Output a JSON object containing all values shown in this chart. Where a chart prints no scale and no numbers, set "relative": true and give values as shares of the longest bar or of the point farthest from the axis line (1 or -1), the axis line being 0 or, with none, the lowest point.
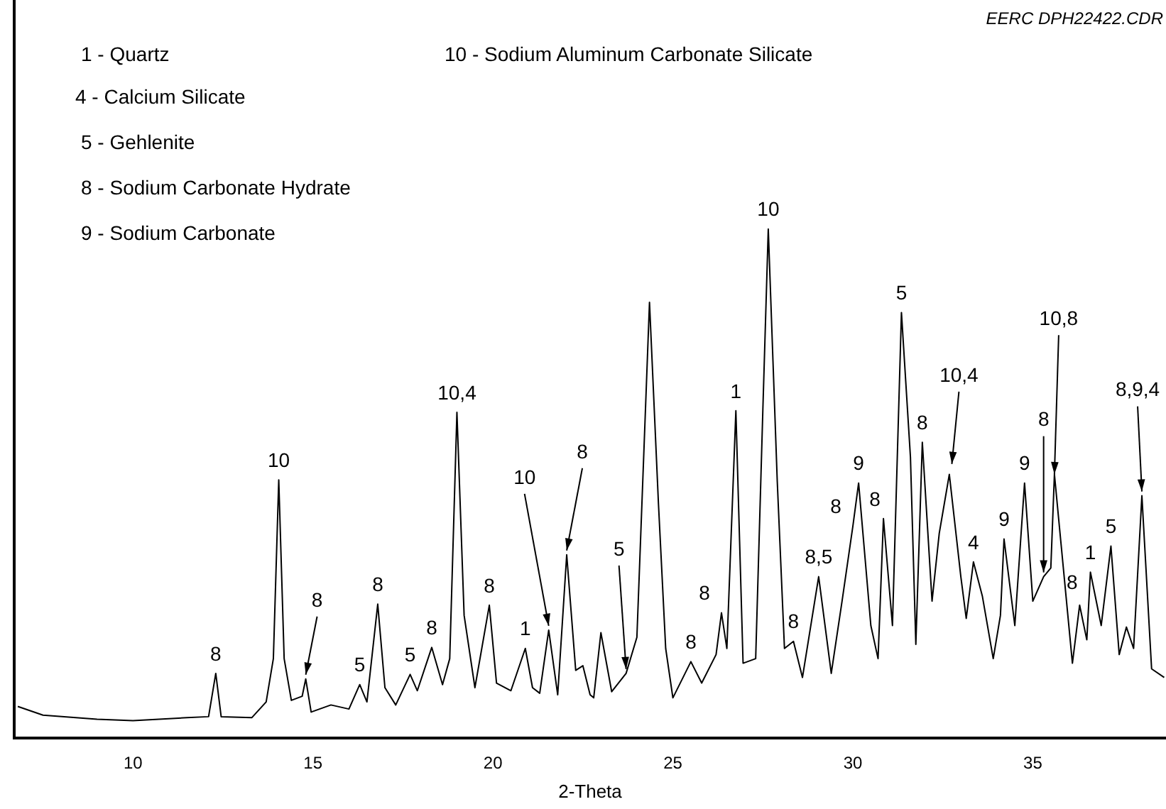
{
  "chart_data": {
    "type": "line",
    "relative": true,
    "xlabel": "2-Theta",
    "color": "#000000",
    "grid": false,
    "legend": false,
    "marker": "none",
    "x": [
      6.8,
      7.5,
      9,
      10,
      11.5,
      12.1,
      12.3,
      12.45,
      13.3,
      13.7,
      13.9,
      14.05,
      14.2,
      14.4,
      14.7,
      14.8,
      14.95,
      15.5,
      16.0,
      16.3,
      16.5,
      16.8,
      17.0,
      17.3,
      17.7,
      17.9,
      18.3,
      18.6,
      18.8,
      19.0,
      19.2,
      19.5,
      19.9,
      20.1,
      20.5,
      20.9,
      21.1,
      21.3,
      21.55,
      21.8,
      22.05,
      22.3,
      22.5,
      22.7,
      22.8,
      23.0,
      23.3,
      23.7,
      24.0,
      24.35,
      24.6,
      24.8,
      25.0,
      25.5,
      25.8,
      26.2,
      26.35,
      26.5,
      26.75,
      26.95,
      27.3,
      27.5,
      27.65,
      27.9,
      28.1,
      28.35,
      28.6,
      29.05,
      29.4,
      29.7,
      30.0,
      30.16,
      30.5,
      30.7,
      30.85,
      31.1,
      31.35,
      31.6,
      31.75,
      31.93,
      32.2,
      32.4,
      32.68,
      33.0,
      33.15,
      33.35,
      33.6,
      33.9,
      34.1,
      34.2,
      34.5,
      34.77,
      35.0,
      35.3,
      35.5,
      35.6,
      36.1,
      36.3,
      36.5,
      36.6,
      36.9,
      37.17,
      37.4,
      37.6,
      37.8,
      38.03,
      38.3,
      38.65
    ],
    "values": [
      0.062,
      0.045,
      0.037,
      0.034,
      0.04,
      0.042,
      0.127,
      0.042,
      0.04,
      0.071,
      0.156,
      0.507,
      0.156,
      0.074,
      0.082,
      0.116,
      0.051,
      0.065,
      0.057,
      0.105,
      0.071,
      0.263,
      0.099,
      0.065,
      0.125,
      0.093,
      0.178,
      0.105,
      0.156,
      0.64,
      0.241,
      0.099,
      0.261,
      0.108,
      0.093,
      0.176,
      0.099,
      0.088,
      0.212,
      0.085,
      0.36,
      0.133,
      0.142,
      0.085,
      0.079,
      0.207,
      0.091,
      0.127,
      0.198,
      0.856,
      0.459,
      0.176,
      0.079,
      0.15,
      0.108,
      0.164,
      0.246,
      0.176,
      0.643,
      0.147,
      0.156,
      0.646,
      1,
      0.504,
      0.176,
      0.19,
      0.119,
      0.317,
      0.127,
      0.269,
      0.416,
      0.501,
      0.221,
      0.156,
      0.431,
      0.221,
      0.836,
      0.552,
      0.184,
      0.581,
      0.269,
      0.402,
      0.518,
      0.317,
      0.235,
      0.346,
      0.278,
      0.156,
      0.241,
      0.391,
      0.221,
      0.501,
      0.269,
      0.317,
      0.334,
      0.518,
      0.147,
      0.261,
      0.193,
      0.326,
      0.221,
      0.377,
      0.164,
      0.218,
      0.176,
      0.476,
      0.136,
      0.119
    ],
    "annotations": [
      "EERC DPH22422.CDR",
      "1 - Quartz",
      "4 - Calcium Silicate",
      "5 - Gehlenite",
      "8 - Sodium Carbonate Hydrate",
      "9 - Sodium Carbonate",
      "10 - Sodium Aluminum Carbonate Silicate",
      "8",
      {
        "text": "8",
        "x": 12.3,
        "y": 0.127
      },
      {
        "text": "10",
        "x": 14.05,
        "y": 0.507
      },
      {
        "text": "8",
        "x": 14.8,
        "y": 0.116
      },
      {
        "text": "5",
        "x": 16.3,
        "y": 0.105
      },
      {
        "text": "8",
        "x": 16.8,
        "y": 0.263
      },
      {
        "text": "5",
        "x": 17.7,
        "y": 0.125
      },
      {
        "text": "8",
        "x": 18.3,
        "y": 0.178
      },
      {
        "text": "10,4",
        "x": 19.0,
        "y": 0.64
      },
      {
        "text": "8",
        "x": 19.9,
        "y": 0.261
      },
      {
        "text": "1",
        "x": 20.9,
        "y": 0.176
      },
      {
        "text": "10",
        "x": 21.55,
        "y": 0.212
      },
      {
        "text": "8",
        "x": 22.05,
        "y": 0.36
      },
      {
        "text": "5",
        "x": 23.7,
        "y": 0.127
      },
      {
        "text": "8",
        "x": 25.5,
        "y": 0.15
      },
      {
        "text": "8",
        "x": 26.35,
        "y": 0.246
      },
      {
        "text": "1",
        "x": 26.75,
        "y": 0.643
      },
      {
        "text": "10",
        "x": 27.65,
        "y": 1
      },
      {
        "text": "8",
        "x": 28.35,
        "y": 0.19
      },
      {
        "text": "8,5",
        "x": 29.05,
        "y": 0.317
      },
      {
        "text": "8",
        "x": 30.0,
        "y": 0.416
      },
      {
        "text": "9",
        "x": 30.16,
        "y": 0.501
      },
      {
        "text": "8",
        "x": 30.85,
        "y": 0.431
      },
      {
        "text": "5",
        "x": 31.35,
        "y": 0.836
      },
      {
        "text": "8",
        "x": 31.93,
        "y": 0.581
      },
      {
        "text": "10,4",
        "x": 32.75,
        "y": 0.53
      },
      {
        "text": "4",
        "x": 33.35,
        "y": 0.346
      },
      {
        "text": "9",
        "x": 34.2,
        "y": 0.391
      },
      {
        "text": "9",
        "x": 34.77,
        "y": 0.501
      },
      {
        "text": "8",
        "x": 35.3,
        "y": 0.317
      },
      {
        "text": "10,8",
        "x": 35.6,
        "y": 0.51
      },
      {
        "text": "1",
        "x": 36.6,
        "y": 0.326
      },
      {
        "text": "5",
        "x": 37.17,
        "y": 0.377
      },
      {
        "text": "8,9,4",
        "x": 38.03,
        "y": 0.476
      }
    ],
    "xlim": [
      6.7,
      38.7
    ],
    "xticks": [
      10,
      15,
      20,
      25,
      30,
      35
    ]
  }
}
